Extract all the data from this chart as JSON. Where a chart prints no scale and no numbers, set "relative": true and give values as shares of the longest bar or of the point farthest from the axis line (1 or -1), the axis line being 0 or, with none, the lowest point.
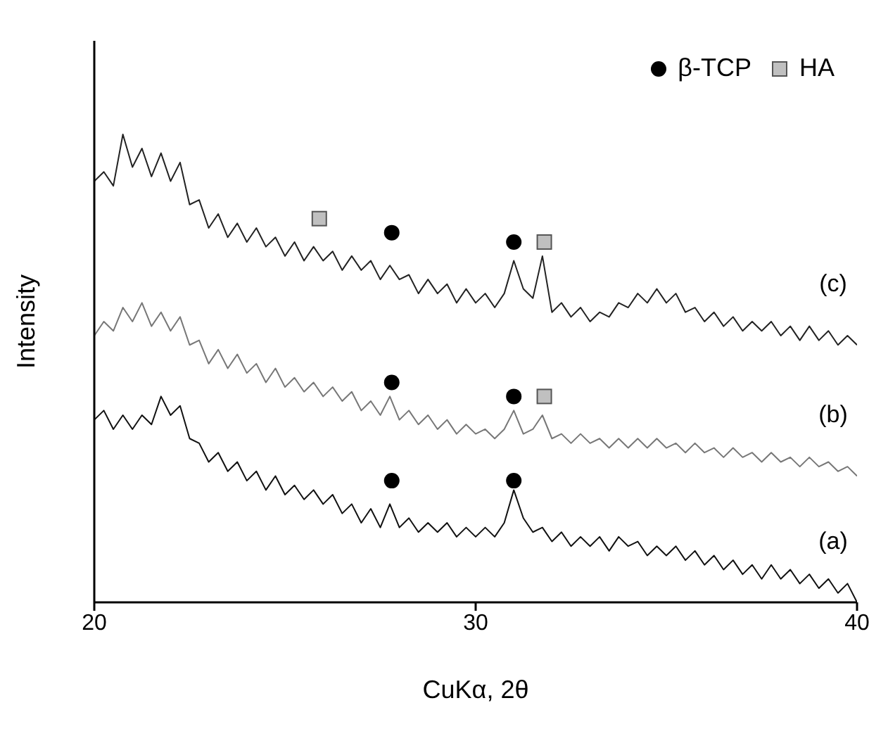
{
  "chart_data": {
    "type": "line",
    "relative": true,
    "xlabel": "CuKα, 2θ",
    "ylabel": "Intensity",
    "xlim": [
      20,
      40
    ],
    "xticks": [
      20,
      30,
      40
    ],
    "grid": false,
    "legend": "top right",
    "x": [
      20.0,
      20.25,
      20.5,
      20.75,
      21.0,
      21.25,
      21.5,
      21.75,
      22.0,
      22.25,
      22.5,
      22.75,
      23.0,
      23.25,
      23.5,
      23.75,
      24.0,
      24.25,
      24.5,
      24.75,
      25.0,
      25.25,
      25.5,
      25.75,
      26.0,
      26.25,
      26.5,
      26.75,
      27.0,
      27.25,
      27.5,
      27.75,
      28.0,
      28.25,
      28.5,
      28.75,
      29.0,
      29.25,
      29.5,
      29.75,
      30.0,
      30.25,
      30.5,
      30.75,
      31.0,
      31.25,
      31.5,
      31.75,
      32.0,
      32.25,
      32.5,
      32.75,
      33.0,
      33.25,
      33.5,
      33.75,
      34.0,
      34.25,
      34.5,
      34.75,
      35.0,
      35.25,
      35.5,
      35.75,
      36.0,
      36.25,
      36.5,
      36.75,
      37.0,
      37.25,
      37.5,
      37.75,
      38.0,
      38.25,
      38.5,
      38.75,
      39.0,
      39.25,
      39.5,
      39.75,
      40.0
    ],
    "series": [
      {
        "name": "(c)",
        "color": "#222222",
        "line_style": "solid",
        "marker": "none",
        "values": [
          0.9,
          0.92,
          0.89,
          1.0,
          0.93,
          0.97,
          0.91,
          0.96,
          0.9,
          0.94,
          0.85,
          0.86,
          0.8,
          0.83,
          0.78,
          0.81,
          0.77,
          0.8,
          0.76,
          0.78,
          0.74,
          0.77,
          0.73,
          0.76,
          0.73,
          0.75,
          0.71,
          0.74,
          0.71,
          0.73,
          0.69,
          0.72,
          0.69,
          0.7,
          0.66,
          0.69,
          0.66,
          0.68,
          0.64,
          0.67,
          0.64,
          0.66,
          0.63,
          0.66,
          0.73,
          0.67,
          0.65,
          0.74,
          0.62,
          0.64,
          0.61,
          0.63,
          0.6,
          0.62,
          0.61,
          0.64,
          0.63,
          0.66,
          0.64,
          0.67,
          0.64,
          0.66,
          0.62,
          0.63,
          0.6,
          0.62,
          0.59,
          0.61,
          0.58,
          0.6,
          0.58,
          0.6,
          0.57,
          0.59,
          0.56,
          0.59,
          0.56,
          0.58,
          0.55,
          0.57,
          0.55
        ]
      },
      {
        "name": "(b)",
        "color": "#777777",
        "line_style": "solid",
        "marker": "none",
        "values": [
          0.57,
          0.6,
          0.58,
          0.63,
          0.6,
          0.64,
          0.59,
          0.62,
          0.58,
          0.61,
          0.55,
          0.56,
          0.51,
          0.54,
          0.5,
          0.53,
          0.49,
          0.51,
          0.47,
          0.5,
          0.46,
          0.48,
          0.45,
          0.47,
          0.44,
          0.46,
          0.43,
          0.45,
          0.41,
          0.43,
          0.4,
          0.44,
          0.39,
          0.41,
          0.38,
          0.4,
          0.37,
          0.39,
          0.36,
          0.38,
          0.36,
          0.37,
          0.35,
          0.37,
          0.41,
          0.36,
          0.37,
          0.4,
          0.35,
          0.36,
          0.34,
          0.36,
          0.34,
          0.35,
          0.33,
          0.35,
          0.33,
          0.35,
          0.33,
          0.35,
          0.33,
          0.34,
          0.32,
          0.34,
          0.32,
          0.33,
          0.31,
          0.33,
          0.31,
          0.32,
          0.3,
          0.32,
          0.3,
          0.31,
          0.29,
          0.31,
          0.29,
          0.3,
          0.28,
          0.29,
          0.27
        ]
      },
      {
        "name": "(a)",
        "color": "#111111",
        "line_style": "solid",
        "marker": "none",
        "values": [
          0.39,
          0.41,
          0.37,
          0.4,
          0.37,
          0.4,
          0.38,
          0.44,
          0.4,
          0.42,
          0.35,
          0.34,
          0.3,
          0.32,
          0.28,
          0.3,
          0.26,
          0.28,
          0.24,
          0.27,
          0.23,
          0.25,
          0.22,
          0.24,
          0.21,
          0.23,
          0.19,
          0.21,
          0.17,
          0.2,
          0.16,
          0.21,
          0.16,
          0.18,
          0.15,
          0.17,
          0.15,
          0.17,
          0.14,
          0.16,
          0.14,
          0.16,
          0.14,
          0.17,
          0.24,
          0.18,
          0.15,
          0.16,
          0.13,
          0.15,
          0.12,
          0.14,
          0.12,
          0.14,
          0.11,
          0.14,
          0.12,
          0.13,
          0.1,
          0.12,
          0.1,
          0.12,
          0.09,
          0.11,
          0.08,
          0.1,
          0.07,
          0.09,
          0.06,
          0.08,
          0.05,
          0.08,
          0.05,
          0.07,
          0.04,
          0.06,
          0.03,
          0.05,
          0.02,
          0.04,
          0.0
        ]
      },
      {
        "name": "β-TCP",
        "type": "scatter",
        "marker": "circle",
        "color": "#000000",
        "x": [
          27.8,
          31.0,
          27.8,
          31.0,
          27.8,
          31.0
        ],
        "values": [
          0.79,
          0.77,
          0.47,
          0.44,
          0.26,
          0.26
        ]
      },
      {
        "name": "HA",
        "type": "scatter",
        "marker": "square",
        "color": "#c0c0c0",
        "x": [
          25.9,
          31.8,
          31.8
        ],
        "values": [
          0.82,
          0.77,
          0.44
        ]
      }
    ]
  }
}
